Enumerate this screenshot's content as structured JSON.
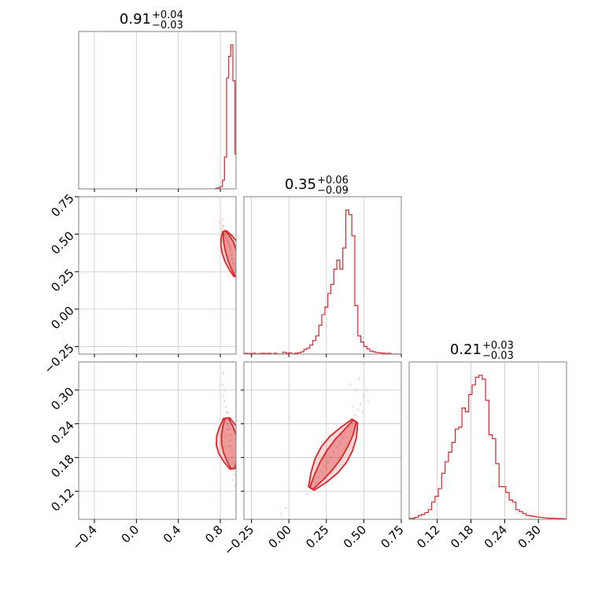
{
  "chart_data": {
    "type": "corner",
    "color": "#d62728",
    "grid": true,
    "parameters": [
      {
        "index": 0,
        "title": {
          "value": "0.91",
          "plus": "+0.04",
          "minus": "−0.03"
        },
        "range": [
          -0.55,
          0.95
        ],
        "ticks": [
          -0.4,
          0.0,
          0.4,
          0.8
        ],
        "tick_labels": [
          "−0.4",
          "0.0",
          "0.4",
          "0.8"
        ],
        "hist": {
          "edges": [
            0.74,
            0.76,
            0.78,
            0.8,
            0.82,
            0.84,
            0.86,
            0.88,
            0.9,
            0.92,
            0.94,
            0.95
          ],
          "counts": [
            0,
            0.004,
            0.008,
            0.016,
            0.06,
            0.22,
            0.77,
            0.92,
            1.0,
            0.75,
            0.24
          ]
        }
      },
      {
        "index": 1,
        "title": {
          "value": "0.35",
          "plus": "+0.06",
          "minus": "−0.09"
        },
        "range": [
          -0.3,
          0.75
        ],
        "ticks": [
          -0.25,
          0.0,
          0.25,
          0.5,
          0.75
        ],
        "tick_labels": [
          "−0.25",
          "0.00",
          "0.25",
          "0.50",
          "0.75"
        ],
        "hist": {
          "edges": [
            -0.3,
            -0.28,
            -0.26,
            -0.24,
            -0.22,
            -0.2,
            -0.18,
            -0.16,
            -0.14,
            -0.12,
            -0.1,
            -0.08,
            -0.06,
            -0.04,
            -0.02,
            0.0,
            0.02,
            0.04,
            0.06,
            0.08,
            0.1,
            0.12,
            0.14,
            0.16,
            0.18,
            0.2,
            0.22,
            0.24,
            0.26,
            0.28,
            0.3,
            0.32,
            0.34,
            0.36,
            0.38,
            0.4,
            0.42,
            0.44,
            0.46,
            0.48,
            0.5,
            0.52,
            0.54,
            0.56,
            0.58,
            0.6,
            0.62,
            0.64,
            0.66,
            0.68,
            0.7,
            0.72,
            0.75
          ],
          "counts": [
            0.005,
            0.004,
            0.004,
            0.005,
            0,
            0.004,
            0.005,
            0.004,
            0.005,
            0,
            0.005,
            0,
            0,
            0.012,
            0.005,
            0.008,
            0,
            0.006,
            0.008,
            0.015,
            0.03,
            0.04,
            0.06,
            0.09,
            0.12,
            0.19,
            0.26,
            0.31,
            0.4,
            0.46,
            0.56,
            0.62,
            0.56,
            0.7,
            0.95,
            0.92,
            0.78,
            0.32,
            0.12,
            0.08,
            0.05,
            0.035,
            0.02,
            0.015,
            0.01,
            0.008,
            0.006,
            0.004,
            0.005,
            0,
            0,
            0
          ]
        }
      },
      {
        "index": 2,
        "title": {
          "value": "0.21",
          "plus": "+0.03",
          "minus": "−0.03"
        },
        "range": [
          0.07,
          0.35
        ],
        "ticks": [
          0.12,
          0.18,
          0.24,
          0.3
        ],
        "tick_labels": [
          "0.12",
          "0.18",
          "0.24",
          "0.30"
        ],
        "hist": {
          "edges": [
            0.07,
            0.08,
            0.086,
            0.092,
            0.098,
            0.104,
            0.11,
            0.116,
            0.122,
            0.128,
            0.134,
            0.14,
            0.146,
            0.152,
            0.158,
            0.164,
            0.17,
            0.176,
            0.182,
            0.188,
            0.194,
            0.2,
            0.206,
            0.212,
            0.218,
            0.224,
            0.23,
            0.236,
            0.242,
            0.248,
            0.254,
            0.26,
            0.266,
            0.272,
            0.278,
            0.284,
            0.29,
            0.296,
            0.302,
            0.308,
            0.314,
            0.32,
            0.326,
            0.332,
            0.338,
            0.344,
            0.35
          ],
          "counts": [
            0.005,
            0.01,
            0.02,
            0.025,
            0.035,
            0.05,
            0.09,
            0.12,
            0.16,
            0.24,
            0.3,
            0.35,
            0.4,
            0.47,
            0.48,
            0.58,
            0.56,
            0.65,
            0.7,
            0.74,
            0.75,
            0.73,
            0.62,
            0.44,
            0.42,
            0.29,
            0.17,
            0.17,
            0.14,
            0.1,
            0.09,
            0.05,
            0.04,
            0.03,
            0.02,
            0.018,
            0.015,
            0.012,
            0.01,
            0.008,
            0.006,
            0.005,
            0.005,
            0.004,
            0.004,
            0.003
          ]
        }
      }
    ],
    "pairs": [
      {
        "row": 1,
        "col": 0,
        "points_x": [
          0.8,
          0.82,
          0.81,
          0.83,
          0.84,
          0.85,
          0.83,
          0.86,
          0.87,
          0.88,
          0.86,
          0.89,
          0.9,
          0.91,
          0.89,
          0.92,
          0.93,
          0.94,
          0.92,
          0.9,
          0.88,
          0.84,
          0.87,
          0.91,
          0.93,
          0.95,
          0.85,
          0.89,
          0.94,
          0.82
        ],
        "points_y": [
          0.58,
          0.56,
          0.54,
          0.55,
          0.52,
          0.5,
          0.51,
          0.48,
          0.46,
          0.44,
          0.47,
          0.42,
          0.4,
          0.37,
          0.41,
          0.33,
          0.3,
          0.26,
          0.31,
          0.36,
          0.43,
          0.53,
          0.45,
          0.34,
          0.28,
          0.2,
          0.49,
          0.39,
          0.24,
          0.6
        ],
        "ridge_x": [
          0.84,
          0.86,
          0.88,
          0.9,
          0.92,
          0.94,
          0.95
        ],
        "ridge_y": [
          0.52,
          0.48,
          0.44,
          0.39,
          0.33,
          0.27,
          0.22
        ],
        "halfwidths": [
          0.03,
          0.05
        ]
      },
      {
        "row": 2,
        "col": 0,
        "points_x": [
          0.82,
          0.83,
          0.84,
          0.85,
          0.86,
          0.85,
          0.87,
          0.88,
          0.86,
          0.89,
          0.9,
          0.91,
          0.92,
          0.93,
          0.94,
          0.9,
          0.88,
          0.87,
          0.91,
          0.93,
          0.84,
          0.86,
          0.92,
          0.95,
          0.83
        ],
        "points_y": [
          0.31,
          0.29,
          0.28,
          0.27,
          0.26,
          0.25,
          0.24,
          0.23,
          0.22,
          0.21,
          0.2,
          0.19,
          0.17,
          0.15,
          0.13,
          0.22,
          0.2,
          0.26,
          0.18,
          0.16,
          0.3,
          0.23,
          0.14,
          0.1,
          0.33
        ],
        "ridge_x": [
          0.86,
          0.87,
          0.88,
          0.89,
          0.9,
          0.91,
          0.92
        ],
        "ridge_y": [
          0.25,
          0.235,
          0.22,
          0.205,
          0.19,
          0.175,
          0.16
        ],
        "halfwidths": [
          0.012,
          0.02
        ]
      },
      {
        "row": 2,
        "col": 1,
        "points_x": [
          0.12,
          0.15,
          0.18,
          0.2,
          0.22,
          0.24,
          0.26,
          0.28,
          0.3,
          0.32,
          0.34,
          0.36,
          0.38,
          0.4,
          0.42,
          0.44,
          0.46,
          0.48,
          0.5,
          0.52,
          0.45,
          0.47,
          0.43,
          0.35,
          0.25,
          0.49,
          0.53,
          -0.05,
          -0.02,
          0.41
        ],
        "points_y": [
          0.115,
          0.125,
          0.135,
          0.145,
          0.155,
          0.165,
          0.172,
          0.18,
          0.19,
          0.198,
          0.205,
          0.215,
          0.225,
          0.235,
          0.245,
          0.255,
          0.265,
          0.275,
          0.29,
          0.3,
          0.3,
          0.32,
          0.27,
          0.22,
          0.16,
          0.26,
          0.28,
          0.08,
          0.09,
          0.31
        ],
        "ridge_x": [
          0.15,
          0.2,
          0.25,
          0.3,
          0.35,
          0.4,
          0.44
        ],
        "ridge_y": [
          0.125,
          0.145,
          0.165,
          0.185,
          0.205,
          0.225,
          0.245
        ],
        "halfwidths": [
          0.012,
          0.022
        ]
      }
    ]
  }
}
